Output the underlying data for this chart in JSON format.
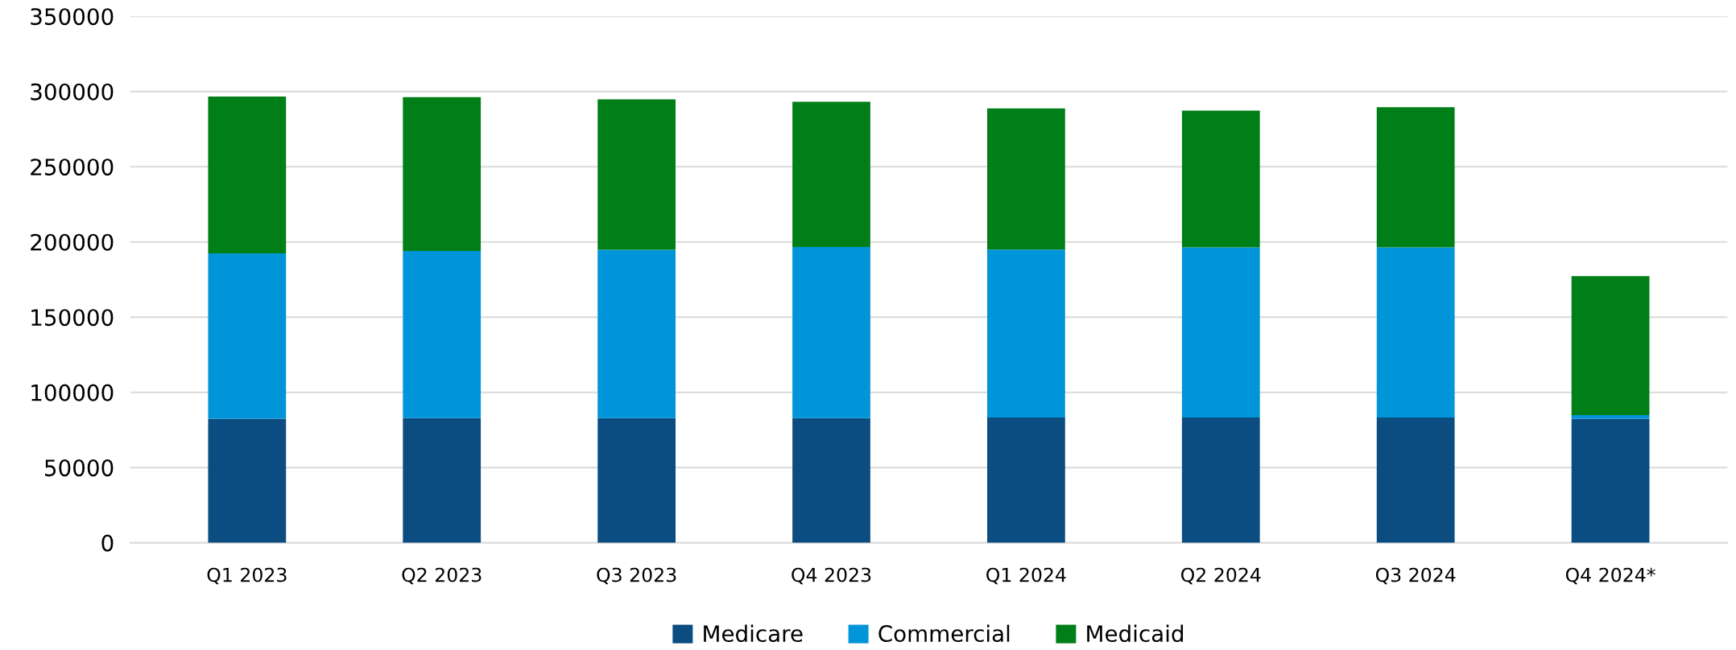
{
  "chart_data": {
    "type": "bar",
    "stacked": true,
    "categories": [
      "Q1 2023",
      "Q2 2023",
      "Q3 2023",
      "Q4 2023",
      "Q1 2024",
      "Q2 2024",
      "Q3 2024",
      "Q4 2024*"
    ],
    "series": [
      {
        "name": "Medicare",
        "color": "#0b4d80",
        "values": [
          82400,
          82800,
          82800,
          82800,
          83200,
          83200,
          83200,
          82500
        ]
      },
      {
        "name": "Commercial",
        "color": "#0095d8",
        "values": [
          110000,
          111100,
          111900,
          113800,
          111700,
          113200,
          113200,
          2300
        ]
      },
      {
        "name": "Medicaid",
        "color": "#007f18",
        "values": [
          104200,
          102300,
          100000,
          96500,
          93900,
          90900,
          93200,
          92400
        ]
      }
    ],
    "ylim": [
      0,
      350000
    ],
    "yticks": [
      0,
      50000,
      100000,
      150000,
      200000,
      250000,
      300000,
      350000
    ],
    "grid": "y",
    "legend": "bottom"
  }
}
